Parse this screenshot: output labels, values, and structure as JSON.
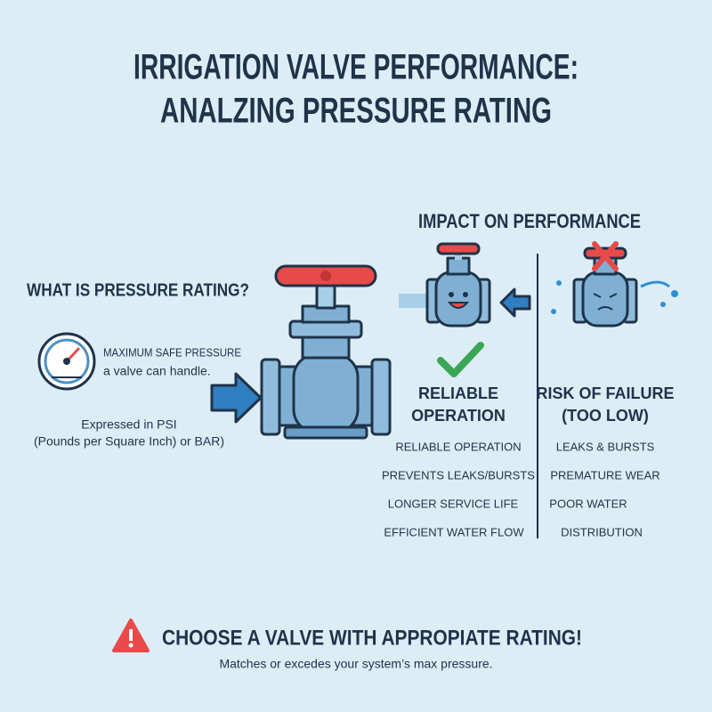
{
  "title": {
    "lines": [
      "IRRIGATION VALVE PERFORMANCE:",
      "ANALZING PRESSURE RATING"
    ]
  },
  "definition": {
    "heading": "WHAT IS PRESSURE RATING?",
    "gauge_text": [
      "MAXIMUM SAFE PRESSURE",
      "a valve can handle."
    ],
    "units_text": [
      "Expressed in PSI",
      "(Pounds per Square Inch) or BAR)"
    ]
  },
  "impact": {
    "heading": "IMPACT ON PERFORMANCE",
    "good": {
      "title": [
        "RELIABLE",
        "OPERATION"
      ],
      "items": [
        "RELIABLE OPERATION",
        "PREVENTS LEAKS/BURSTS",
        "LONGER SERVICE LIFE",
        "EFFICIENT WATER FLOW"
      ]
    },
    "bad": {
      "title": [
        "RISK OF FAILURE",
        "(TOO LOW)"
      ],
      "items": [
        "LEAKS & BURSTS",
        "PREMATURE WEAR",
        "POOR WATER",
        "DISTRIBUTION"
      ]
    }
  },
  "callout": {
    "heading": "CHOOSE A VALVE WITH APPROPIATE RATING!",
    "text": "Matches or excedes your system’s max pressure."
  }
}
